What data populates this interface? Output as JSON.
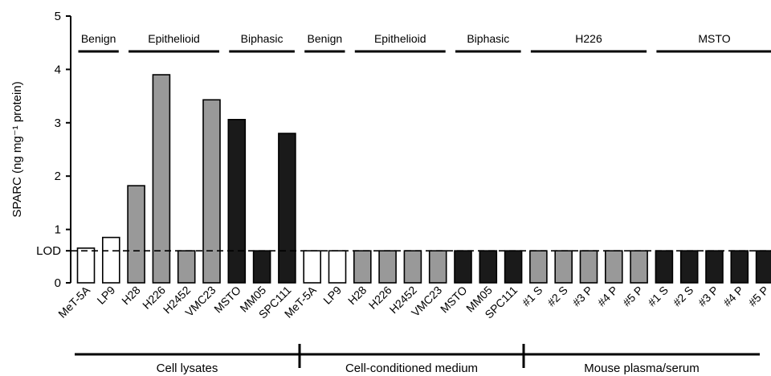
{
  "chart_data": {
    "type": "bar",
    "ylabel": "SPARC (ng mg⁻¹ protein)",
    "ylim": [
      0,
      5
    ],
    "yticks": [
      0,
      1,
      2,
      3,
      4,
      5
    ],
    "lod": {
      "label": "LOD",
      "value": 0.6
    },
    "categories": [
      "MeT-5A",
      "LP9",
      "H28",
      "H226",
      "H2452",
      "VMC23",
      "MSTO",
      "MM05",
      "SPC111",
      "MeT-5A",
      "LP9",
      "H28",
      "H226",
      "H2452",
      "VMC23",
      "MSTO",
      "MM05",
      "SPC111",
      "#1 S",
      "#2 S",
      "#3 P",
      "#4 P",
      "#5 P",
      "#1 S",
      "#2 S",
      "#3 P",
      "#4 P",
      "#5 P"
    ],
    "values": [
      0.65,
      0.85,
      1.82,
      3.9,
      0.6,
      3.43,
      3.06,
      0.6,
      2.8,
      0.6,
      0.6,
      0.6,
      0.6,
      0.6,
      0.6,
      0.6,
      0.6,
      0.6,
      0.6,
      0.6,
      0.6,
      0.6,
      0.6,
      0.6,
      0.6,
      0.6,
      0.6,
      0.6
    ],
    "fills": [
      "white",
      "white",
      "gray",
      "gray",
      "gray",
      "gray",
      "black",
      "black",
      "black",
      "white",
      "white",
      "gray",
      "gray",
      "gray",
      "gray",
      "black",
      "black",
      "black",
      "gray",
      "gray",
      "gray",
      "gray",
      "gray",
      "black",
      "black",
      "black",
      "black",
      "black"
    ],
    "colors": {
      "white": "#ffffff",
      "gray": "#999999",
      "black": "#1a1a1a"
    },
    "groups": [
      {
        "label": "Benign",
        "from": 0,
        "to": 1
      },
      {
        "label": "Epithelioid",
        "from": 2,
        "to": 5
      },
      {
        "label": "Biphasic",
        "from": 6,
        "to": 8
      },
      {
        "label": "Benign",
        "from": 9,
        "to": 10
      },
      {
        "label": "Epithelioid",
        "from": 11,
        "to": 14
      },
      {
        "label": "Biphasic",
        "from": 15,
        "to": 17
      },
      {
        "label": "H226",
        "from": 18,
        "to": 22
      },
      {
        "label": "MSTO",
        "from": 23,
        "to": 27
      }
    ],
    "sections": [
      {
        "label": "Cell lysates",
        "from": 0,
        "to": 8
      },
      {
        "label": "Cell-conditioned medium",
        "from": 9,
        "to": 17
      },
      {
        "label": "Mouse plasma/serum",
        "from": 18,
        "to": 27
      }
    ]
  }
}
